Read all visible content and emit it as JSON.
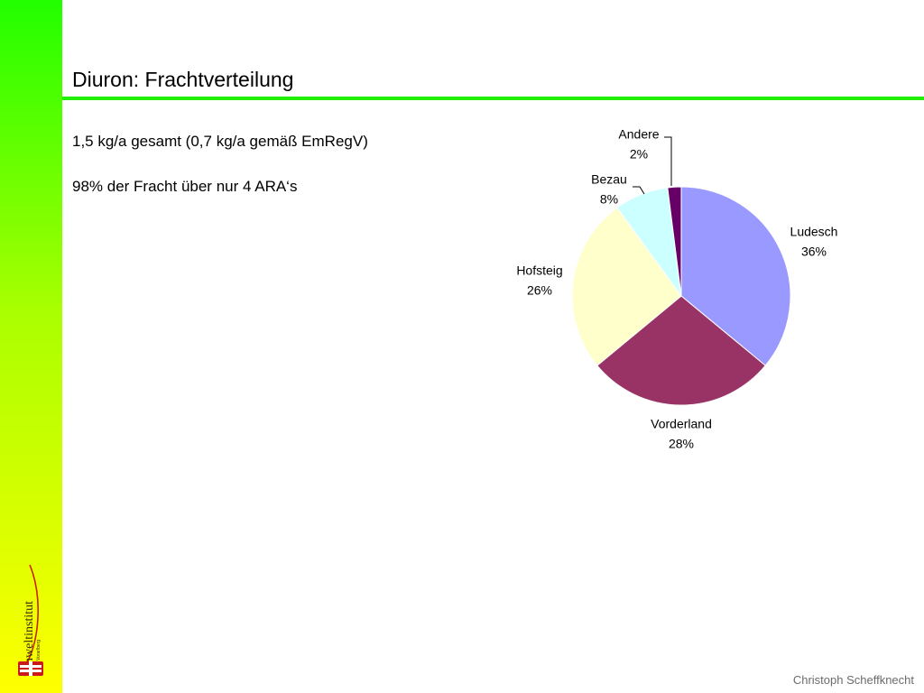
{
  "slide": {
    "title": "Diuron: Frachtverteilung",
    "bullets": [
      "1,5 kg/a gesamt (0,7 kg/a gemäß EmRegV)",
      "98% der Fracht über nur 4 ARA‘s"
    ],
    "footer": "Christoph Scheffknecht"
  },
  "logo": {
    "name": "Umweltinstitut",
    "subtitle": "Vorarlberg"
  },
  "colors": {
    "band_top": "#22ff00",
    "band_bottom": "#ffff00",
    "title_rule": "#22ee00"
  },
  "chart_data": {
    "type": "pie",
    "title": "",
    "categories": [
      "Ludesch",
      "Vorderland",
      "Hofsteig",
      "Bezau",
      "Andere"
    ],
    "values": [
      36,
      28,
      26,
      8,
      2
    ],
    "labels": [
      "36%",
      "28%",
      "26%",
      "8%",
      "2%"
    ],
    "colors": [
      "#9999ff",
      "#993366",
      "#ffffcc",
      "#ccffff",
      "#660066"
    ],
    "start": "12 o'clock",
    "direction": "clockwise",
    "legend": "none",
    "label_position": "outside"
  }
}
